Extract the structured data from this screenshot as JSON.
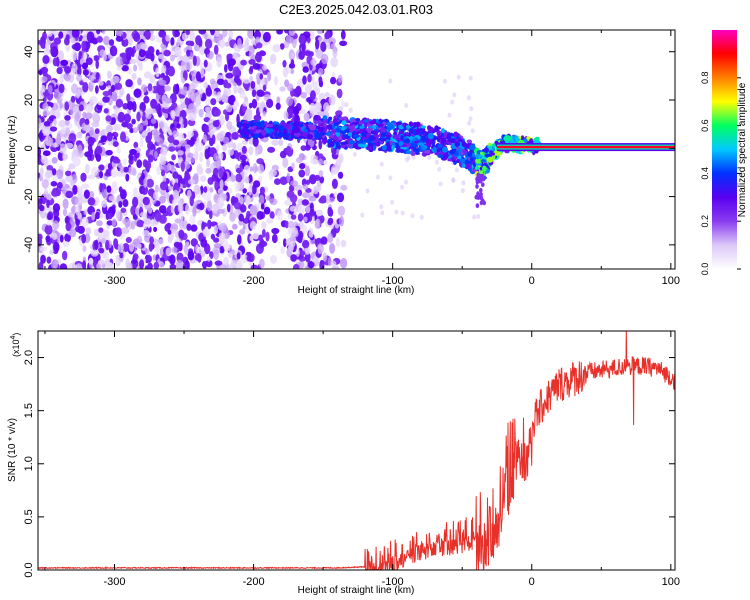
{
  "figure_title": "C2E3.2025.042.03.01.R03",
  "colors": {
    "snr_line": "#e8302a",
    "colormap": [
      "#ffffff",
      "#dcc8f8",
      "#8a3cf0",
      "#5a00f0",
      "#0030ff",
      "#00c8ff",
      "#00ff60",
      "#ffff00",
      "#ff8000",
      "#ff0000",
      "#ff00c0"
    ],
    "frame": "#000000"
  },
  "chart_data": [
    {
      "type": "heatmap",
      "title": "C2E3.2025.042.03.01.R03",
      "xlabel": "Height of straight line (km)",
      "ylabel": "Frequency (Hz)",
      "xlim": [
        -355,
        103
      ],
      "ylim": [
        -50,
        49
      ],
      "x_ticks": [
        -300,
        -200,
        -100,
        0,
        100
      ],
      "x_tick_labels": [
        "-300",
        "-200",
        "-100",
        "0",
        "100"
      ],
      "y_ticks": [
        -40,
        -20,
        0,
        20,
        40
      ],
      "y_tick_labels": [
        "-40",
        "-20",
        "0",
        "20",
        "40"
      ],
      "colorbar": {
        "label": "Normalized spectral amplitude",
        "range": [
          0,
          1
        ],
        "ticks": [
          0,
          0.2,
          0.4,
          0.6,
          0.8
        ],
        "tick_labels": [
          "0.0",
          "0.2",
          "0.4",
          "0.6",
          "0.8"
        ]
      },
      "features": {
        "noise_region_x": [
          -355,
          -135
        ],
        "signal_track_start_x": -210,
        "signal_track": {
          "x": [
            -210,
            -150,
            -100,
            -70,
            -50,
            -40,
            -35,
            -30,
            -20,
            -10,
            0,
            100
          ],
          "y": [
            8,
            7,
            5,
            3,
            -1,
            -5,
            -8,
            -3,
            2,
            2,
            1,
            0.5
          ]
        },
        "strong_line_x": [
          -25,
          103
        ],
        "strong_line_y": 0.5
      }
    },
    {
      "type": "line",
      "xlabel": "Height of straight line (km)",
      "ylabel": "SNR (10 * v/v)",
      "y_scale_label": "(x10",
      "y_scale_exp": "4",
      "y_scale_close": ")",
      "xlim": [
        -355,
        103
      ],
      "ylim": [
        0,
        2.25
      ],
      "x_ticks": [
        -300,
        -200,
        -100,
        0,
        100
      ],
      "x_tick_labels": [
        "-300",
        "-200",
        "-100",
        "0",
        "100"
      ],
      "y_ticks": [
        0,
        0.5,
        1.0,
        1.5,
        2.0
      ],
      "y_tick_labels": [
        "0.0",
        "0.5",
        "1.0",
        "1.5",
        "2.0"
      ],
      "series": [
        {
          "name": "SNR",
          "x": [
            -355,
            -300,
            -200,
            -140,
            -120,
            -110,
            -100,
            -90,
            -80,
            -70,
            -60,
            -50,
            -40,
            -35,
            -30,
            -25,
            -20,
            -15,
            -10,
            -5,
            0,
            10,
            20,
            30,
            40,
            50,
            60,
            70,
            80,
            90,
            100,
            103
          ],
          "y": [
            0.02,
            0.02,
            0.02,
            0.02,
            0.03,
            0.06,
            0.12,
            0.2,
            0.25,
            0.3,
            0.3,
            0.32,
            0.38,
            0.4,
            0.45,
            0.55,
            0.8,
            1.05,
            1.2,
            1.28,
            1.38,
            1.6,
            1.75,
            1.8,
            1.86,
            1.88,
            1.9,
            1.92,
            1.92,
            1.9,
            1.82,
            1.78
          ]
        }
      ]
    }
  ]
}
